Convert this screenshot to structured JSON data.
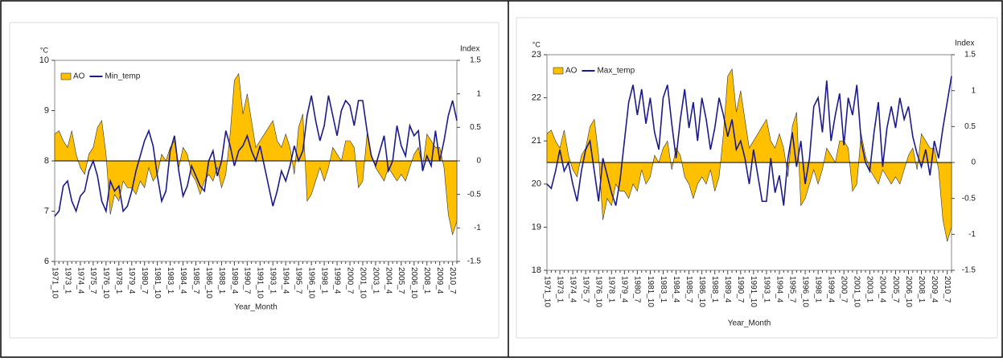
{
  "chart_data": [
    {
      "type": "combo",
      "y_label": "°C",
      "y2_label": "Index",
      "x_label": "Year_Month",
      "categories": [
        "1971_10",
        null,
        null,
        "1973_1",
        null,
        null,
        "1974_4",
        null,
        null,
        "1975_7",
        null,
        null,
        "1976_10",
        null,
        null,
        "1978_1",
        null,
        null,
        "1979_4",
        null,
        null,
        "1980_7",
        null,
        null,
        "1981_10",
        null,
        null,
        "1983_1",
        null,
        null,
        "1984_4",
        null,
        null,
        "1985_7",
        null,
        null,
        "1986_10",
        null,
        null,
        "1988_1",
        null,
        null,
        "1989_4",
        null,
        null,
        "1990_7",
        null,
        null,
        "1991_10",
        null,
        null,
        "1993_1",
        null,
        null,
        "1994_4",
        null,
        null,
        "1995_7",
        null,
        null,
        "1996_10",
        null,
        null,
        "1998_1",
        null,
        null,
        "1999_4",
        null,
        null,
        "2000_7",
        null,
        null,
        "2001_10",
        null,
        null,
        "2003_1",
        null,
        null,
        "2004_4",
        null,
        null,
        "2005_7",
        null,
        null,
        "2006_10",
        null,
        null,
        "2008_1",
        null,
        null,
        "2009_4",
        null,
        null,
        "2010_7",
        null
      ],
      "ylim": [
        6,
        10
      ],
      "yticks": [
        6,
        7,
        8,
        9,
        10
      ],
      "y2lim": [
        -1.5,
        1.5
      ],
      "y2ticks": [
        -1.5,
        -1,
        -0.5,
        0,
        0.5,
        1,
        1.5
      ],
      "series": [
        {
          "name": "AO",
          "type": "area",
          "axis": "y2",
          "color": "#ffc000",
          "values": [
            0.4,
            0.45,
            0.3,
            0.2,
            0.45,
            0.1,
            -0.1,
            -0.2,
            0.1,
            0.2,
            0.5,
            0.6,
            0.1,
            -0.8,
            -0.5,
            -0.6,
            -0.3,
            -0.4,
            -0.4,
            -0.5,
            -0.3,
            -0.4,
            -0.1,
            -0.3,
            -0.2,
            0.1,
            0.0,
            0.2,
            0.3,
            -0.1,
            0.2,
            0.1,
            -0.2,
            -0.3,
            -0.5,
            -0.3,
            -0.2,
            -0.3,
            -0.1,
            -0.4,
            -0.2,
            0.4,
            1.2,
            1.3,
            0.7,
            1.0,
            0.6,
            0.2,
            0.3,
            0.4,
            0.5,
            0.6,
            0.3,
            0.2,
            0.4,
            0.2,
            -0.2,
            0.5,
            0.7,
            -0.6,
            -0.5,
            -0.3,
            -0.1,
            -0.3,
            -0.1,
            0.2,
            0.1,
            0.0,
            0.3,
            0.3,
            0.2,
            -0.4,
            -0.3,
            0.4,
            0.1,
            -0.1,
            -0.2,
            -0.3,
            -0.1,
            -0.2,
            -0.3,
            -0.2,
            -0.3,
            -0.1,
            0.1,
            0.2,
            -0.1,
            0.4,
            0.3,
            0.2,
            0.2,
            -0.1,
            -0.8,
            -1.1,
            -0.9
          ]
        },
        {
          "name": "Min_temp",
          "type": "line",
          "color": "#1c1a8a",
          "values": [
            6.9,
            7.0,
            7.5,
            7.6,
            7.2,
            7.0,
            7.3,
            7.4,
            7.8,
            8.0,
            7.7,
            7.2,
            7.0,
            7.6,
            7.4,
            7.5,
            7.0,
            7.1,
            7.4,
            7.8,
            8.1,
            8.4,
            8.6,
            8.3,
            7.7,
            7.2,
            7.4,
            8.2,
            8.5,
            7.8,
            7.3,
            7.5,
            7.9,
            7.7,
            7.5,
            7.4,
            8.0,
            8.2,
            7.7,
            8.0,
            8.6,
            8.3,
            7.9,
            8.2,
            8.3,
            8.5,
            8.2,
            8.0,
            8.3,
            7.9,
            7.5,
            7.1,
            7.4,
            7.8,
            7.6,
            7.9,
            8.3,
            8.0,
            8.2,
            8.9,
            9.3,
            8.8,
            8.4,
            8.7,
            9.3,
            8.9,
            8.5,
            9.0,
            9.2,
            9.1,
            8.7,
            9.2,
            9.2,
            8.6,
            8.1,
            7.9,
            8.2,
            8.5,
            7.8,
            8.0,
            8.7,
            8.3,
            8.1,
            8.7,
            8.5,
            8.6,
            7.8,
            8.1,
            7.9,
            8.6,
            8.0,
            8.4,
            8.9,
            9.2,
            8.8
          ]
        }
      ]
    },
    {
      "type": "combo",
      "y_label": "°C",
      "y2_label": "Index",
      "x_label": "Year_Month",
      "categories": [
        "1971_10",
        null,
        null,
        "1973_1",
        null,
        null,
        "1974_4",
        null,
        null,
        "1975_7",
        null,
        null,
        "1976_10",
        null,
        null,
        "1978_1",
        null,
        null,
        "1979_4",
        null,
        null,
        "1980_7",
        null,
        null,
        "1981_10",
        null,
        null,
        "1983_1",
        null,
        null,
        "1984_4",
        null,
        null,
        "1985_7",
        null,
        null,
        "1986_10",
        null,
        null,
        "1988_1",
        null,
        null,
        "1989_4",
        null,
        null,
        "1990_7",
        null,
        null,
        "1991_10",
        null,
        null,
        "1993_1",
        null,
        null,
        "1994_4",
        null,
        null,
        "1995_7",
        null,
        null,
        "1996_10",
        null,
        null,
        "1998_1",
        null,
        null,
        "1999_4",
        null,
        null,
        "2000_7",
        null,
        null,
        "2001_10",
        null,
        null,
        "2003_1",
        null,
        null,
        "2004_4",
        null,
        null,
        "2005_7",
        null,
        null,
        "2006_10",
        null,
        null,
        "2008_1",
        null,
        null,
        "2009_4",
        null,
        null,
        "2010_7",
        null
      ],
      "ylim": [
        18,
        23
      ],
      "yticks": [
        18,
        19,
        20,
        21,
        22,
        23
      ],
      "y2lim": [
        -1.5,
        1.5
      ],
      "y2ticks": [
        -1.5,
        -1,
        -0.5,
        0,
        0.5,
        1,
        1.5
      ],
      "series": [
        {
          "name": "AO",
          "type": "area",
          "axis": "y2",
          "color": "#ffc000",
          "values": [
            0.4,
            0.45,
            0.3,
            0.2,
            0.45,
            0.1,
            -0.1,
            -0.2,
            0.1,
            0.2,
            0.5,
            0.6,
            0.1,
            -0.8,
            -0.5,
            -0.6,
            -0.3,
            -0.4,
            -0.4,
            -0.5,
            -0.3,
            -0.4,
            -0.1,
            -0.3,
            -0.2,
            0.1,
            0.0,
            0.2,
            0.3,
            -0.1,
            0.2,
            0.1,
            -0.2,
            -0.3,
            -0.5,
            -0.3,
            -0.2,
            -0.3,
            -0.1,
            -0.4,
            -0.2,
            0.4,
            1.2,
            1.3,
            0.7,
            1.0,
            0.6,
            0.2,
            0.3,
            0.4,
            0.5,
            0.6,
            0.3,
            0.2,
            0.4,
            0.2,
            -0.2,
            0.5,
            0.7,
            -0.6,
            -0.5,
            -0.3,
            -0.1,
            -0.3,
            -0.1,
            0.2,
            0.1,
            0.0,
            0.3,
            0.3,
            0.2,
            -0.4,
            -0.3,
            0.4,
            0.1,
            -0.1,
            -0.2,
            -0.3,
            -0.1,
            -0.2,
            -0.3,
            -0.2,
            -0.3,
            -0.1,
            0.1,
            0.2,
            -0.1,
            0.4,
            0.3,
            0.2,
            0.2,
            -0.1,
            -0.8,
            -1.1,
            -0.9
          ]
        },
        {
          "name": "Max_temp",
          "type": "line",
          "color": "#1c1a8a",
          "values": [
            20.0,
            19.9,
            20.3,
            20.8,
            20.3,
            20.5,
            20.0,
            19.6,
            20.3,
            20.8,
            21.0,
            20.3,
            19.6,
            20.6,
            20.2,
            19.8,
            19.5,
            20.1,
            21.0,
            21.9,
            22.3,
            21.6,
            22.2,
            21.4,
            22.0,
            21.2,
            20.8,
            22.0,
            22.3,
            21.4,
            20.6,
            21.5,
            22.2,
            21.3,
            21.9,
            21.0,
            22.0,
            21.5,
            20.8,
            21.3,
            22.0,
            21.6,
            21.1,
            21.5,
            20.8,
            21.0,
            20.6,
            20.0,
            20.8,
            20.2,
            19.6,
            19.6,
            20.6,
            19.8,
            20.2,
            19.5,
            20.6,
            21.2,
            20.4,
            21.0,
            20.0,
            20.6,
            21.8,
            22.0,
            21.2,
            22.4,
            21.0,
            21.6,
            22.1,
            20.9,
            22.0,
            21.6,
            22.3,
            21.0,
            20.5,
            20.3,
            21.2,
            21.9,
            20.4,
            21.3,
            21.8,
            21.3,
            22.0,
            21.5,
            21.8,
            21.1,
            20.7,
            20.4,
            20.8,
            20.2,
            21.0,
            20.6,
            21.3,
            21.9,
            22.5
          ]
        }
      ]
    }
  ]
}
